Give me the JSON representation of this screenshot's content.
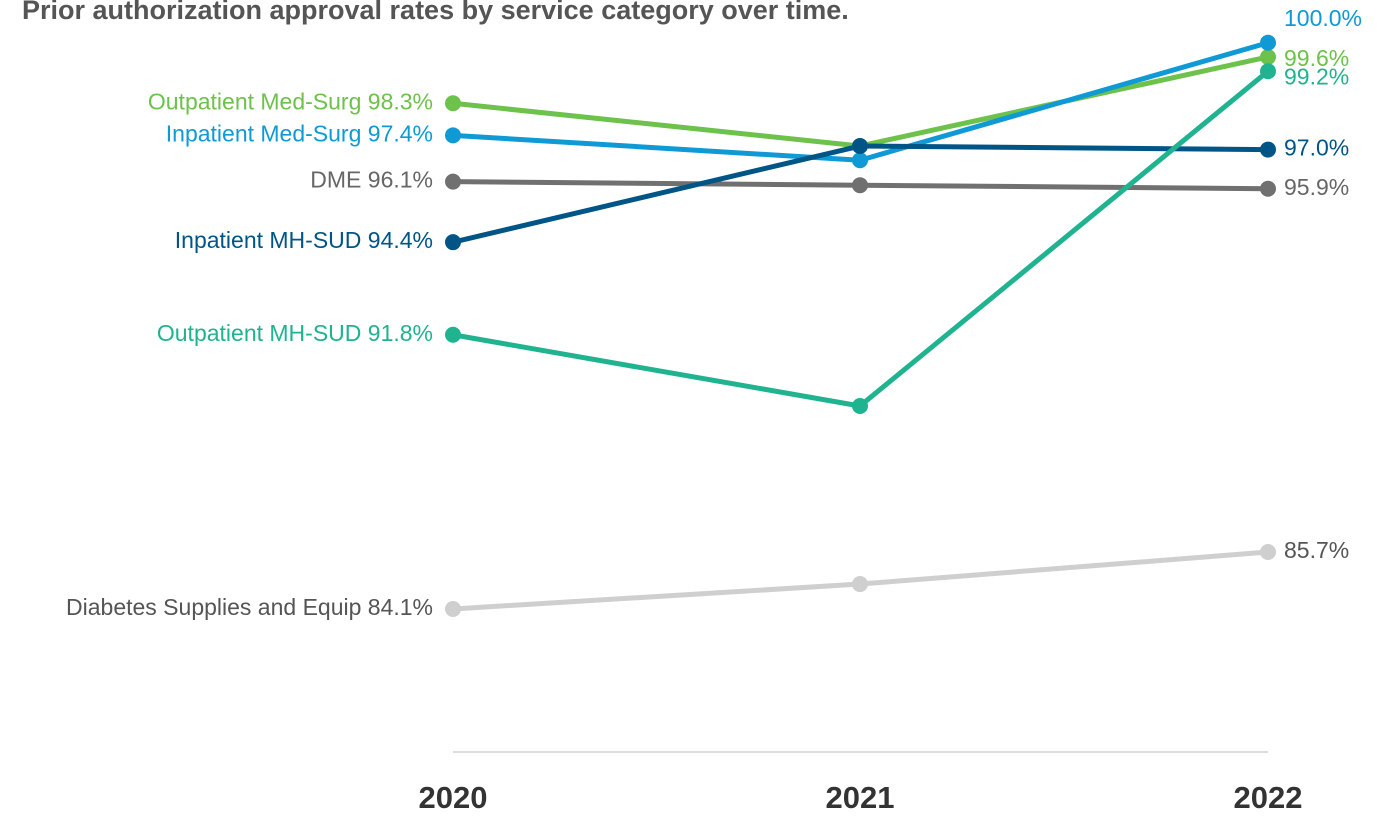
{
  "chart_data": {
    "type": "line",
    "title": "Prior authorization approval rates by service category over time.",
    "categories": [
      "2020",
      "2021",
      "2022"
    ],
    "ylim": [
      80,
      101.2
    ],
    "series": [
      {
        "name": "Outpatient Med-Surg",
        "color": "#6cc24a",
        "label_color": "#6cc24a",
        "values": [
          98.3,
          97.1,
          99.6
        ],
        "value_labels": [
          "98.3%",
          null,
          "99.6%"
        ]
      },
      {
        "name": "Inpatient Med-Surg",
        "color": "#0f9ad6",
        "label_color": "#0f9ad6",
        "values": [
          97.4,
          96.7,
          100.0
        ],
        "value_labels": [
          "97.4%",
          null,
          "100.0%"
        ]
      },
      {
        "name": "DME",
        "color": "#707070",
        "label_color": "#666666",
        "values": [
          96.1,
          96.0,
          95.9
        ],
        "value_labels": [
          "96.1%",
          null,
          "95.9%"
        ]
      },
      {
        "name": "Inpatient MH-SUD",
        "color": "#005587",
        "label_color": "#005587",
        "values": [
          94.4,
          97.1,
          97.0
        ],
        "value_labels": [
          "94.4%",
          null,
          "97.0%"
        ]
      },
      {
        "name": "Outpatient MH-SUD",
        "color": "#20b390",
        "label_color": "#20b390",
        "values": [
          91.8,
          89.8,
          99.2
        ],
        "value_labels": [
          "91.8%",
          null,
          "99.2%"
        ]
      },
      {
        "name": "Diabetes Supplies and Equip",
        "color": "#cfcfcf",
        "label_color": "#555555",
        "values": [
          84.1,
          84.8,
          85.7
        ],
        "value_labels": [
          "84.1%",
          null,
          "85.7%"
        ]
      }
    ]
  }
}
